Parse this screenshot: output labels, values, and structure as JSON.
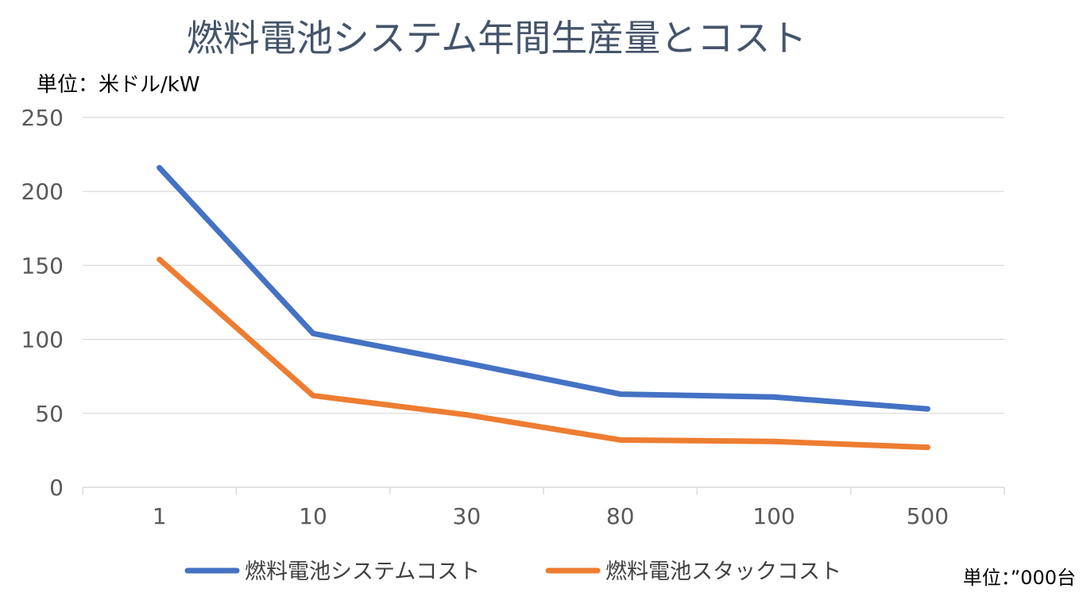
{
  "chart_data": {
    "type": "line",
    "title": "燃料電池システム年間生産量とコスト",
    "ylabel": "単位：米ドル/kW",
    "xlabel": "単位：”000台",
    "categories": [
      "1",
      "10",
      "30",
      "80",
      "100",
      "500"
    ],
    "ylim": [
      0,
      250
    ],
    "yticks": [
      0,
      50,
      100,
      150,
      200,
      250
    ],
    "grid": true,
    "legend_position": "bottom",
    "series": [
      {
        "name": "燃料電池システムコスト",
        "color": "#4472c4",
        "values": [
          216,
          104,
          84,
          63,
          61,
          53
        ]
      },
      {
        "name": "燃料電池スタックコスト",
        "color": "#ed7d31",
        "values": [
          154,
          62,
          49,
          32,
          31,
          27
        ]
      }
    ]
  }
}
